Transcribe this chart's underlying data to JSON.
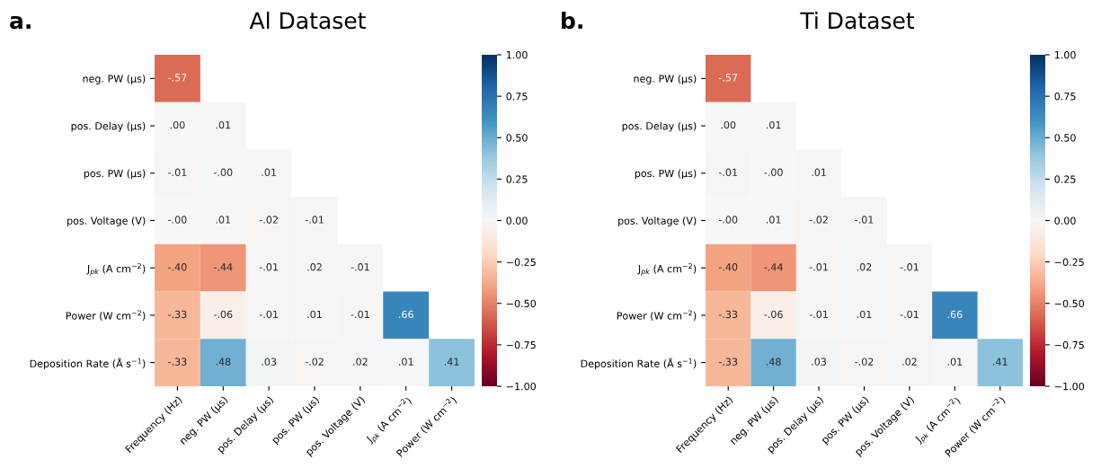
{
  "chart_data": [
    {
      "type": "heatmap",
      "title": "Al Dataset",
      "annotations": [
        "a."
      ],
      "categories": [
        "Frequency (Hz)",
        "neg. PW (µs)",
        "pos. Delay (µs)",
        "pos. PW (µs)",
        "pos. Voltage (V)",
        "J$_{pk}$ (A cm$^{−2}$)",
        "Power (W cm$^{−2}$)"
      ],
      "y_categories": [
        "neg. PW (µs)",
        "pos. Delay (µs)",
        "pos. PW (µs)",
        "pos. Voltage (V)",
        "J$_{pk}$ (A cm$^{−2}$)",
        "Power (W cm$^{−2}$)",
        "Deposition Rate (Å s$^{−1}$)"
      ],
      "cells": [
        [
          -0.57,
          null,
          null,
          null,
          null,
          null,
          null
        ],
        [
          0.0,
          0.01,
          null,
          null,
          null,
          null,
          null
        ],
        [
          -0.01,
          0.0,
          0.01,
          null,
          null,
          null,
          null
        ],
        [
          0.0,
          0.01,
          -0.02,
          -0.01,
          null,
          null,
          null
        ],
        [
          -0.4,
          -0.44,
          -0.01,
          0.02,
          -0.01,
          null,
          null
        ],
        [
          -0.33,
          -0.06,
          -0.01,
          0.01,
          -0.01,
          0.66,
          null
        ],
        [
          -0.33,
          0.48,
          0.03,
          -0.02,
          0.02,
          0.01,
          0.41
        ]
      ],
      "cell_labels": [
        [
          "-.57",
          null,
          null,
          null,
          null,
          null,
          null
        ],
        [
          ".00",
          ".01",
          null,
          null,
          null,
          null,
          null
        ],
        [
          "-.01",
          "-.00",
          ".01",
          null,
          null,
          null,
          null
        ],
        [
          "-.00",
          ".01",
          "-.02",
          "-.01",
          null,
          null,
          null
        ],
        [
          "-.40",
          "-.44",
          "-.01",
          ".02",
          "-.01",
          null,
          null
        ],
        [
          "-.33",
          "-.06",
          "-.01",
          ".01",
          "-.01",
          ".66",
          null
        ],
        [
          "-.33",
          ".48",
          ".03",
          "-.02",
          ".02",
          ".01",
          ".41"
        ]
      ],
      "clim": [
        -1.0,
        1.0
      ],
      "cticks": [
        {
          "value": -1.0,
          "label": "−1.00"
        },
        {
          "value": -0.75,
          "label": "−0.75"
        },
        {
          "value": -0.5,
          "label": "−0.50"
        },
        {
          "value": -0.25,
          "label": "−0.25"
        },
        {
          "value": 0.0,
          "label": "0.00"
        },
        {
          "value": 0.25,
          "label": "0.25"
        },
        {
          "value": 0.5,
          "label": "0.50"
        },
        {
          "value": 0.75,
          "label": "0.75"
        },
        {
          "value": 1.0,
          "label": "1.00"
        }
      ]
    },
    {
      "type": "heatmap",
      "title": "Ti Dataset",
      "annotations": [
        "b."
      ],
      "categories": [
        "Frequency (Hz)",
        "neg. PW (µs)",
        "pos. Delay (µs)",
        "pos. PW (µs)",
        "pos. Voltage (V)",
        "J$_{pk}$ (A cm$^{−2}$)",
        "Power (W cm$^{−2}$)"
      ],
      "y_categories": [
        "neg. PW (µs)",
        "pos. Delay (µs)",
        "pos. PW (µs)",
        "pos. Voltage (V)",
        "J$_{pk}$ (A cm$^{−2}$)",
        "Power (W cm$^{−2}$)",
        "Deposition Rate (Å s$^{−1}$)"
      ],
      "cells": [
        [
          -0.57,
          null,
          null,
          null,
          null,
          null,
          null
        ],
        [
          0.0,
          0.01,
          null,
          null,
          null,
          null,
          null
        ],
        [
          -0.01,
          0.0,
          0.01,
          null,
          null,
          null,
          null
        ],
        [
          0.0,
          0.01,
          -0.02,
          -0.01,
          null,
          null,
          null
        ],
        [
          -0.4,
          -0.44,
          -0.01,
          0.02,
          -0.01,
          null,
          null
        ],
        [
          -0.33,
          -0.06,
          -0.01,
          0.01,
          -0.01,
          0.66,
          null
        ],
        [
          -0.33,
          0.48,
          0.03,
          -0.02,
          0.02,
          0.01,
          0.41
        ]
      ],
      "cell_labels": [
        [
          "-.57",
          null,
          null,
          null,
          null,
          null,
          null
        ],
        [
          ".00",
          ".01",
          null,
          null,
          null,
          null,
          null
        ],
        [
          "-.01",
          "-.00",
          ".01",
          null,
          null,
          null,
          null
        ],
        [
          "-.00",
          ".01",
          "-.02",
          "-.01",
          null,
          null,
          null
        ],
        [
          "-.40",
          "-.44",
          "-.01",
          ".02",
          "-.01",
          null,
          null
        ],
        [
          "-.33",
          "-.06",
          "-.01",
          ".01",
          "-.01",
          ".66",
          null
        ],
        [
          "-.33",
          ".48",
          ".03",
          "-.02",
          ".02",
          ".01",
          ".41"
        ]
      ],
      "clim": [
        -1.0,
        1.0
      ],
      "cticks": [
        {
          "value": -1.0,
          "label": "−1.00"
        },
        {
          "value": -0.75,
          "label": "−0.75"
        },
        {
          "value": -0.5,
          "label": "−0.50"
        },
        {
          "value": -0.25,
          "label": "−0.25"
        },
        {
          "value": 0.0,
          "label": "0.00"
        },
        {
          "value": 0.25,
          "label": "0.25"
        },
        {
          "value": 0.5,
          "label": "0.50"
        },
        {
          "value": 0.75,
          "label": "0.75"
        },
        {
          "value": 1.0,
          "label": "1.00"
        }
      ]
    }
  ]
}
